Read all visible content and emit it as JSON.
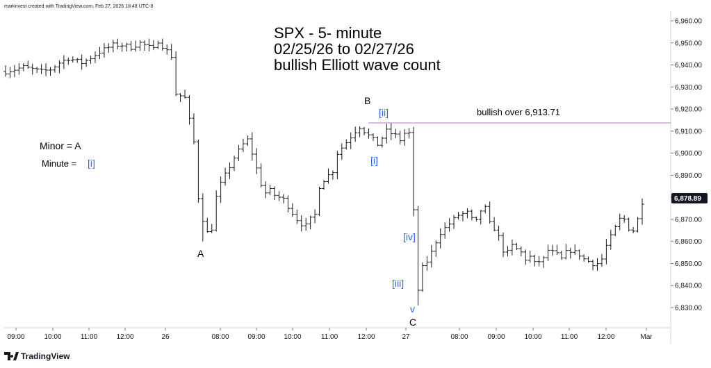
{
  "credit": "markrivest created with TradingView.com, Feb 27, 2026 18:48 UTC-8",
  "logo": "TradingView",
  "colors": {
    "bars": "#131722",
    "accent": "#2962ff",
    "level_line": "#b07cc6",
    "badge_bg": "#131722"
  },
  "chart_data": {
    "type": "ohlc",
    "title_lines": [
      "SPX - 5- minute",
      "02/25/26 to 02/27/26",
      "bullish Elliott wave count"
    ],
    "y_ticks": [
      "6,960.00",
      "6,950.00",
      "6,940.00",
      "6,930.00",
      "6,920.00",
      "6,910.00",
      "6,900.00",
      "6,890.00",
      "6,880.00",
      "6,870.00",
      "6,860.00",
      "6,850.00",
      "6,840.00",
      "6,830.00"
    ],
    "y_tick_values": [
      6960,
      6950,
      6940,
      6930,
      6920,
      6910,
      6900,
      6890,
      6880,
      6870,
      6860,
      6850,
      6840,
      6830
    ],
    "ylim": [
      6822,
      6966
    ],
    "x_ticks": [
      "09:00",
      "10:00",
      "11:00",
      "12:00",
      "26",
      "08:00",
      "09:00",
      "10:00",
      "11:00",
      "12:00",
      "27",
      "08:00",
      "09:00",
      "10:00",
      "11:00",
      "12:00",
      "Mar"
    ],
    "last_price": "6,878.89",
    "level": {
      "value": 6913.71,
      "label": "bullish over 6,913.71"
    },
    "annotations": {
      "minor_a": "Minor = A",
      "minute_prefix": "Minute =",
      "minute_i": "[i]",
      "A": "A",
      "B": "B",
      "C": "C",
      "ii": "[ii]",
      "i2": "[i]",
      "iv": "[iv]",
      "iii": "[iii]",
      "v": "v"
    },
    "path": [
      [
        0,
        6937
      ],
      [
        2,
        6938
      ],
      [
        4,
        6939
      ],
      [
        8,
        6937
      ],
      [
        10,
        6938
      ],
      [
        12,
        6941
      ],
      [
        14,
        6943
      ],
      [
        17,
        6941
      ],
      [
        18,
        6942
      ],
      [
        21,
        6946
      ],
      [
        24,
        6949
      ],
      [
        26,
        6949
      ],
      [
        28,
        6948
      ],
      [
        30,
        6950
      ],
      [
        33,
        6947
      ],
      [
        34,
        6951
      ],
      [
        37,
        6944
      ],
      [
        38,
        6927
      ],
      [
        40,
        6925
      ],
      [
        41,
        6915
      ],
      [
        42,
        6905
      ],
      [
        43,
        6880
      ],
      [
        44,
        6870
      ],
      [
        45,
        6864
      ],
      [
        46,
        6866
      ],
      [
        47,
        6880
      ],
      [
        48,
        6886
      ],
      [
        49,
        6890
      ],
      [
        50,
        6894
      ],
      [
        51,
        6898
      ],
      [
        52,
        6901
      ],
      [
        53,
        6904
      ],
      [
        54,
        6906
      ],
      [
        55,
        6900
      ],
      [
        56,
        6893
      ],
      [
        57,
        6886
      ],
      [
        58,
        6882
      ],
      [
        59,
        6883
      ],
      [
        60,
        6881
      ],
      [
        62,
        6879
      ],
      [
        63,
        6876
      ],
      [
        64,
        6873
      ],
      [
        65,
        6870
      ],
      [
        66,
        6868
      ],
      [
        67,
        6867
      ],
      [
        68,
        6870
      ],
      [
        69,
        6872
      ],
      [
        70,
        6885
      ],
      [
        71,
        6888
      ],
      [
        72,
        6890
      ],
      [
        73,
        6892
      ],
      [
        74,
        6900
      ],
      [
        76,
        6905
      ],
      [
        78,
        6910
      ],
      [
        79,
        6912
      ],
      [
        81,
        6908
      ],
      [
        82,
        6906
      ],
      [
        83,
        6904
      ],
      [
        84,
        6907
      ],
      [
        85,
        6910
      ],
      [
        87,
        6908
      ],
      [
        88,
        6906
      ],
      [
        89,
        6909
      ],
      [
        90,
        6909
      ],
      [
        92,
        6838
      ],
      [
        93,
        6848
      ],
      [
        94,
        6851
      ],
      [
        95,
        6855
      ],
      [
        96,
        6860
      ],
      [
        97,
        6864
      ],
      [
        99,
        6868
      ],
      [
        101,
        6872
      ],
      [
        103,
        6873
      ],
      [
        104,
        6870
      ],
      [
        105,
        6869
      ],
      [
        106,
        6874
      ],
      [
        107,
        6875
      ],
      [
        108,
        6868
      ],
      [
        109,
        6866
      ],
      [
        110,
        6862
      ],
      [
        111,
        6856
      ],
      [
        112,
        6855
      ],
      [
        113,
        6858
      ],
      [
        115,
        6855
      ],
      [
        116,
        6852
      ],
      [
        117,
        6853
      ],
      [
        118,
        6850
      ],
      [
        119,
        6851
      ],
      [
        120,
        6852
      ],
      [
        121,
        6856
      ],
      [
        123,
        6854
      ],
      [
        124,
        6852
      ],
      [
        125,
        6855
      ],
      [
        126,
        6856
      ],
      [
        127,
        6855
      ],
      [
        128,
        6854
      ],
      [
        129,
        6852
      ],
      [
        130,
        6851
      ],
      [
        131,
        6850
      ],
      [
        132,
        6850
      ],
      [
        133,
        6852
      ],
      [
        134,
        6858
      ],
      [
        136,
        6866
      ],
      [
        137,
        6870
      ],
      [
        138,
        6870
      ],
      [
        139,
        6866
      ],
      [
        140,
        6865
      ],
      [
        141,
        6870
      ],
      [
        142,
        6878
      ]
    ]
  }
}
